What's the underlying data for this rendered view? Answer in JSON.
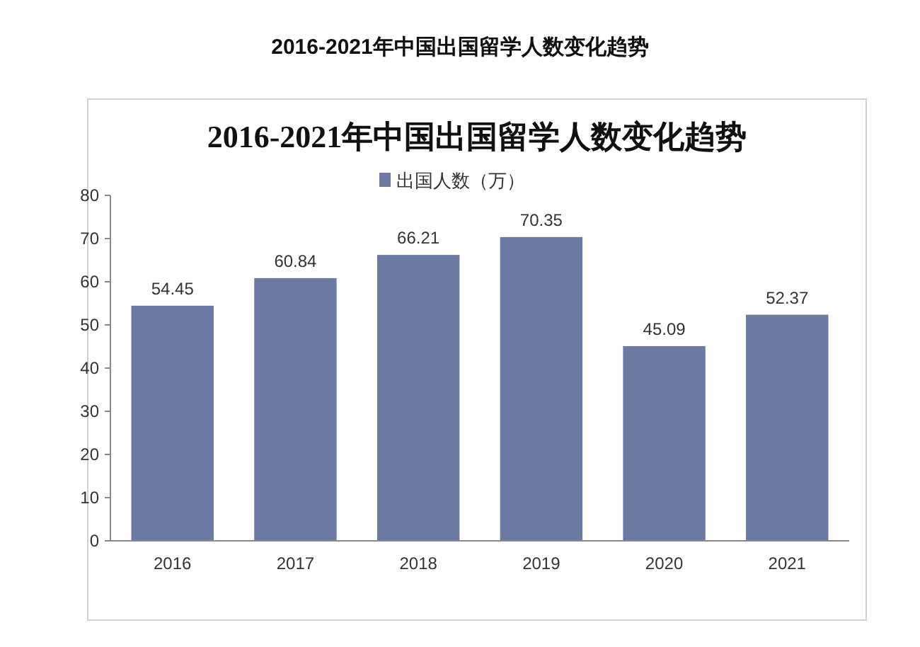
{
  "chart_data": {
    "type": "bar",
    "title": "2016-2021年中国出国留学人数变化趋势",
    "subtitle": "2016-2021年中国出国留学人数变化趋势",
    "categories": [
      "2016",
      "2017",
      "2018",
      "2019",
      "2020",
      "2021"
    ],
    "series": [
      {
        "name": "出国人数（万）",
        "color": "#6a7aa3",
        "values": [
          54.45,
          60.84,
          66.21,
          70.35,
          45.09,
          52.37
        ]
      }
    ],
    "ylim": [
      0,
      80
    ],
    "yticks": [
      0,
      10,
      20,
      30,
      40,
      50,
      60,
      70,
      80
    ],
    "grid": false,
    "legend": "top",
    "data_labels": true
  }
}
